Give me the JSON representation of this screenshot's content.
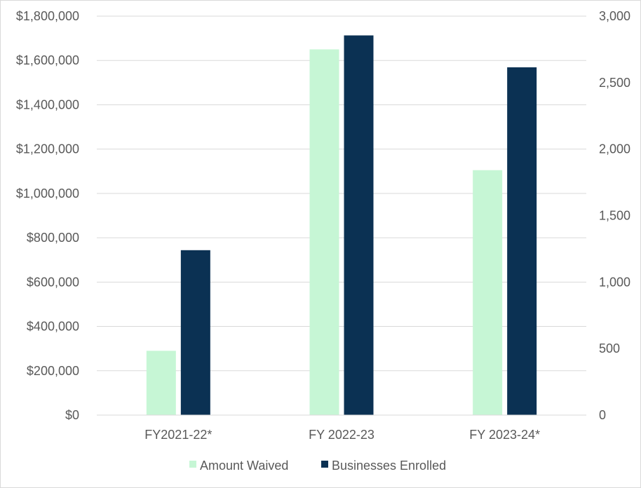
{
  "chart_data": {
    "type": "bar",
    "title": "",
    "xlabel": "",
    "ylabel": "",
    "y2label": "",
    "categories": [
      "FY2021-22*",
      "FY 2022-23",
      "FY 2023-24*"
    ],
    "series": [
      {
        "name": "Amount Waived",
        "axis": "left",
        "color": "#c6f6d5",
        "values": [
          290000,
          1650000,
          1105000
        ]
      },
      {
        "name": "Businesses Enrolled",
        "axis": "right",
        "color": "#0b3153",
        "values": [
          1240,
          2855,
          2615
        ]
      }
    ],
    "ylim": [
      0,
      1800000
    ],
    "y2lim": [
      0,
      3000
    ],
    "yticks": [
      "$0",
      "$200,000",
      "$400,000",
      "$600,000",
      "$800,000",
      "$1,000,000",
      "$1,200,000",
      "$1,400,000",
      "$1,600,000",
      "$1,800,000"
    ],
    "y2ticks": [
      "0",
      "500",
      "1,000",
      "1,500",
      "2,000",
      "2,500",
      "3,000"
    ],
    "grid": true,
    "legend_position": "bottom"
  }
}
